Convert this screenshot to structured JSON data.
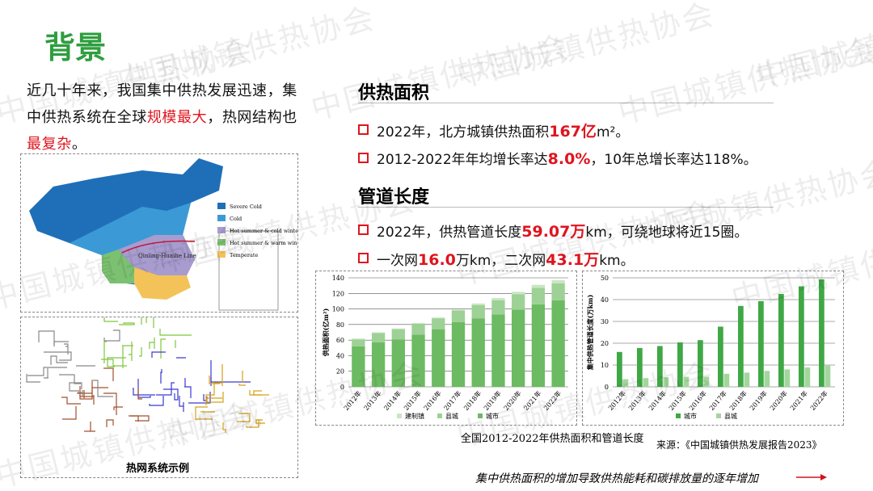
{
  "title": "背景",
  "watermark": "中国城镇供热协会",
  "intro": [
    "近几十年来，我国集中供热发展迅速，集中供热系统在全球",
    "规模最大",
    "，热网结构也",
    "最复杂",
    "。"
  ],
  "map_legend": [
    "Severe Cold",
    "Cold",
    "Hot summer & cold winter",
    "Hot summer & warm winter",
    "Temperate"
  ],
  "map_line": "Qinling-Huaihe Line",
  "network_caption": "热网系统示例",
  "sections": [
    {
      "heading": "供热面积",
      "bullets": [
        [
          "2022年，北方城镇供热面积",
          "167亿",
          "m²。"
        ],
        [
          "2012-2022年年均增长率达",
          "8.0%",
          "，10年总增长率达118%。"
        ]
      ]
    },
    {
      "heading": "管道长度",
      "bullets": [
        [
          "2022年，供热管道长度",
          "59.07万",
          "km，可绕地球将近15圈。"
        ],
        [
          "一次网",
          "16.0",
          "万km，二次网",
          "43.1万",
          "km。"
        ]
      ]
    }
  ],
  "chart_caption": "全国2012-2022年供热面积和管道长度",
  "source": "来源：《中国城镇供热发展报告2023》",
  "footer": "集中供热面积的增加导致供热能耗和碳排放量的逐年增加",
  "chart_data": [
    {
      "type": "bar",
      "stacked": true,
      "y_label": "供热面积(亿m²)",
      "categories": [
        "2012年",
        "2013年",
        "2014年",
        "2015年",
        "2016年",
        "2017年",
        "2018年",
        "2019年",
        "2020年",
        "2021年",
        "2022年"
      ],
      "series": [
        {
          "name": "建制镇",
          "color": "#c9e6c2",
          "values": [
            1,
            1,
            1,
            1,
            1,
            1,
            2,
            3,
            3,
            4,
            4
          ]
        },
        {
          "name": "县城",
          "color": "#9ed195",
          "values": [
            9,
            12,
            13,
            14,
            14,
            15,
            17,
            18,
            20,
            21,
            22
          ]
        },
        {
          "name": "城市",
          "color": "#6cba62",
          "values": [
            52,
            57,
            61,
            67,
            74,
            83,
            88,
            93,
            99,
            106,
            111
          ]
        }
      ],
      "ylim": [
        0,
        140
      ],
      "yticks": [
        0,
        20,
        40,
        60,
        80,
        100,
        120,
        140
      ],
      "grid": true
    },
    {
      "type": "bar",
      "stacked": false,
      "y_label": "集中供热管道长度(万km)",
      "categories": [
        "2012年",
        "2013年",
        "2014年",
        "2015年",
        "2016年",
        "2017年",
        "2018年",
        "2019年",
        "2020年",
        "2021年",
        "2022年"
      ],
      "series": [
        {
          "name": "城市",
          "color": "#3fa845",
          "values": [
            16,
            17.8,
            18.7,
            20.4,
            21.4,
            27.6,
            37.1,
            39.3,
            42.6,
            46.1,
            49.3
          ]
        },
        {
          "name": "县城",
          "color": "#a3d69c",
          "values": [
            3.5,
            4,
            4.4,
            4.6,
            4.6,
            6,
            6.5,
            7.3,
            8,
            8.9,
            9.7
          ]
        }
      ],
      "ylim": [
        0,
        50
      ],
      "yticks": [
        0,
        10,
        20,
        30,
        40,
        50
      ],
      "grid": true
    }
  ]
}
